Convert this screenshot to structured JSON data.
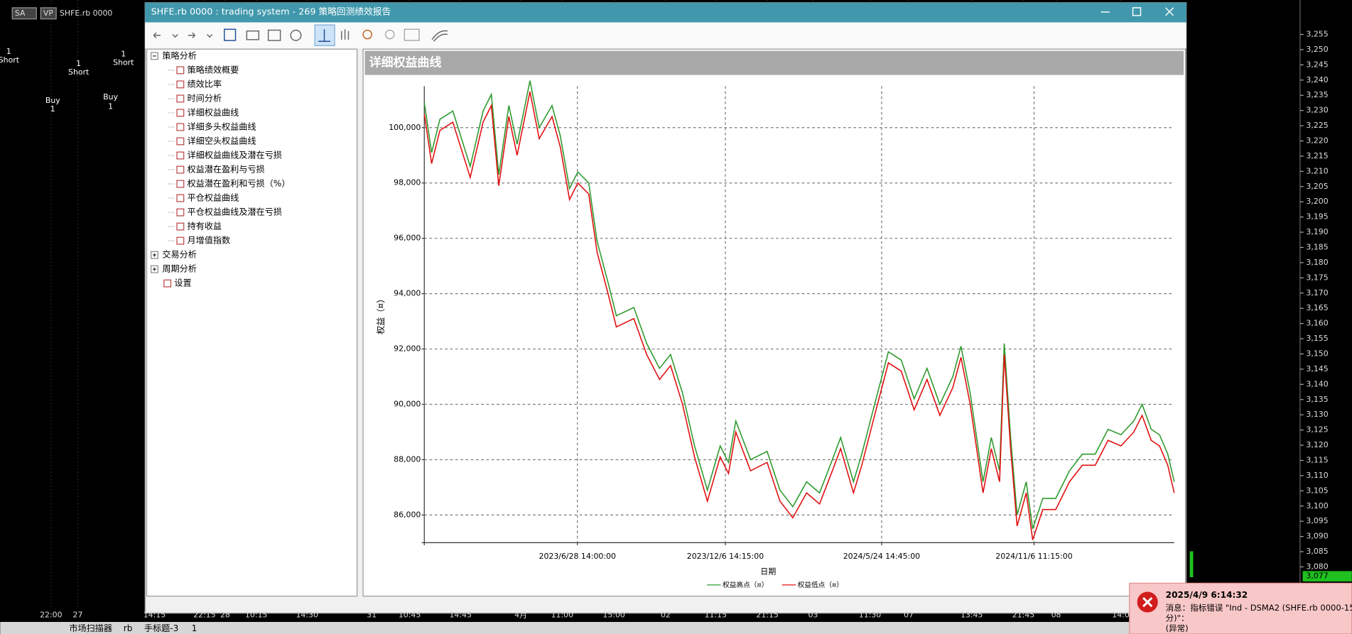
{
  "background": {
    "toolbar": [
      "SA",
      "VP",
      "SHFE.rb 0000"
    ],
    "trade_labels": [
      "1",
      "Short",
      "1",
      "Short",
      "1",
      "Short",
      "Buy",
      "1",
      "Buy",
      "1"
    ],
    "price_axis": [
      "3,255",
      "3,250",
      "3,245",
      "3,240",
      "3,235",
      "3,230",
      "3,225",
      "3,220",
      "3,215",
      "3,210",
      "3,205",
      "3,200",
      "3,195",
      "3,190",
      "3,185",
      "3,180",
      "3,175",
      "3,170",
      "3,165",
      "3,160",
      "3,155",
      "3,150",
      "3,145",
      "3,140",
      "3,135",
      "3,130",
      "3,125",
      "3,120",
      "3,115",
      "3,110",
      "3,105",
      "3,100",
      "3,095",
      "3,090",
      "3,085",
      "3,080"
    ],
    "last_price": "3,077",
    "time_axis": [
      "22:00",
      "27",
      "14:15",
      "22:15",
      "28",
      "10:15",
      "14:30",
      "31",
      "10:45",
      "14:45",
      "4月",
      "11:00",
      "15:00",
      "02",
      "11:15",
      "21:15",
      "03",
      "11:30",
      "07",
      "13:45",
      "21:45",
      "08",
      "14:0"
    ],
    "tabs": [
      "市场扫描器",
      "rb",
      "手标题-3",
      "1"
    ]
  },
  "window": {
    "title": "SHFE.rb 0000 : trading system - 269 策略回测绩效报告",
    "tree": [
      {
        "label": "策略分析",
        "items": [
          "策略绩效概要",
          "绩效比率",
          "时间分析",
          "详细权益曲线",
          "详细多头权益曲线",
          "详细空头权益曲线",
          "详细权益曲线及潜在亏损",
          "权益潜在盈利与亏损",
          "权益潜在盈利和亏损（%）",
          "平仓权益曲线",
          "平仓权益曲线及潜在亏损",
          "持有收益",
          "月增值指数"
        ]
      },
      {
        "label": "交易分析"
      },
      {
        "label": "周期分析"
      },
      {
        "label": "设置"
      }
    ]
  },
  "chart_data": {
    "type": "line",
    "title": "详细权益曲线",
    "x_label": "日期",
    "y_label": "权益（¤）",
    "x": [
      "2023-01-13",
      "2023-01-21",
      "2023-01-30",
      "2023-02-13",
      "2023-03-04",
      "2023-03-18",
      "2023-03-27",
      "2023-04-04",
      "2023-04-15",
      "2023-04-24",
      "2023-05-08",
      "2023-05-18",
      "2023-06-01",
      "2023-06-10",
      "2023-06-20",
      "2023-06-29",
      "2023-07-11",
      "2023-07-20",
      "2023-08-01",
      "2023-08-10",
      "2023-08-29",
      "2023-09-12",
      "2023-09-26",
      "2023-10-08",
      "2023-10-21",
      "2023-11-03",
      "2023-11-17",
      "2023-12-01",
      "2023-12-10",
      "2023-12-18",
      "2024-01-03",
      "2024-01-21",
      "2024-02-04",
      "2024-02-18",
      "2024-03-04",
      "2024-03-18",
      "2024-04-01",
      "2024-04-10",
      "2024-04-24",
      "2024-05-03",
      "2024-05-17",
      "2024-06-01",
      "2024-06-15",
      "2024-06-29",
      "2024-07-13",
      "2024-07-27",
      "2024-08-10",
      "2024-08-19",
      "2024-08-29",
      "2024-09-12",
      "2024-09-21",
      "2024-09-30",
      "2024-10-05",
      "2024-10-12",
      "2024-10-19",
      "2024-10-29",
      "2024-11-05",
      "2024-11-16",
      "2024-11-30",
      "2024-12-15",
      "2024-12-29",
      "2025-01-12",
      "2025-01-26",
      "2025-02-09",
      "2025-02-23",
      "2025-03-04",
      "2025-03-14",
      "2025-03-23",
      "2025-04-01",
      "2025-04-08"
    ],
    "series": [
      {
        "name": "权益高点（¤）",
        "color": "#2e9a2e",
        "values": [
          100900,
          99100,
          100300,
          100600,
          98600,
          100600,
          101200,
          98300,
          100800,
          99400,
          101700,
          100000,
          100800,
          99700,
          97800,
          98400,
          98000,
          95900,
          94400,
          93200,
          93500,
          92200,
          91300,
          91800,
          90400,
          88500,
          86900,
          88500,
          87900,
          89400,
          88000,
          88300,
          86900,
          86300,
          87200,
          86800,
          88000,
          88800,
          87200,
          88200,
          90000,
          91900,
          91600,
          90200,
          91300,
          90000,
          91000,
          92100,
          90400,
          87200,
          88800,
          87600,
          92200,
          88800,
          86000,
          87200,
          85500,
          86600,
          86600,
          87600,
          88200,
          88200,
          89100,
          88900,
          89400,
          90000,
          89100,
          88900,
          88200,
          87200
        ]
      },
      {
        "name": "权益低点（¤）",
        "color": "#e01010",
        "values": [
          100500,
          98700,
          99900,
          100200,
          98200,
          100200,
          100800,
          97900,
          100400,
          99000,
          101300,
          99600,
          100400,
          99300,
          97400,
          98000,
          97600,
          95500,
          94000,
          92800,
          93100,
          91800,
          90900,
          91400,
          90000,
          88100,
          86500,
          88100,
          87500,
          89000,
          87600,
          87900,
          86500,
          85900,
          86800,
          86400,
          87600,
          88400,
          86800,
          87800,
          89600,
          91500,
          91200,
          89800,
          90900,
          89600,
          90600,
          91700,
          90000,
          86800,
          88400,
          87200,
          91800,
          88400,
          85600,
          86800,
          85100,
          86200,
          86200,
          87200,
          87800,
          87800,
          88700,
          88500,
          89000,
          89600,
          88700,
          88500,
          87800,
          86800
        ]
      }
    ],
    "xlim": [
      "2023-01-13",
      "2025-04-08"
    ],
    "xticks": [
      {
        "value": "2023-06-28T14:00:00",
        "label": "2023/6/28 14:00:00"
      },
      {
        "value": "2023-12-06T14:15:00",
        "label": "2023/12/6 14:15:00"
      },
      {
        "value": "2024-05-24T14:45:00",
        "label": "2024/5/24 14:45:00"
      },
      {
        "value": "2024-11-06T11:15:00",
        "label": "2024/11/6 11:15:00"
      }
    ],
    "ylim": [
      85000,
      101500
    ],
    "yticks": [
      {
        "value": 86000,
        "label": "86,000"
      },
      {
        "value": 88000,
        "label": "88,000"
      },
      {
        "value": 90000,
        "label": "90,000"
      },
      {
        "value": 92000,
        "label": "92,000"
      },
      {
        "value": 94000,
        "label": "94,000"
      },
      {
        "value": 96000,
        "label": "96,000"
      },
      {
        "value": 98000,
        "label": "98,000"
      },
      {
        "value": 100000,
        "label": "100,000"
      }
    ],
    "grid": true
  },
  "notification": {
    "time": "2025/4/9 6:14:32",
    "lines": [
      "消息：指标错误 \"Ind - DSMA2 (SHFE.rb 0000-15",
      "分)\"：",
      "(异常)"
    ]
  }
}
